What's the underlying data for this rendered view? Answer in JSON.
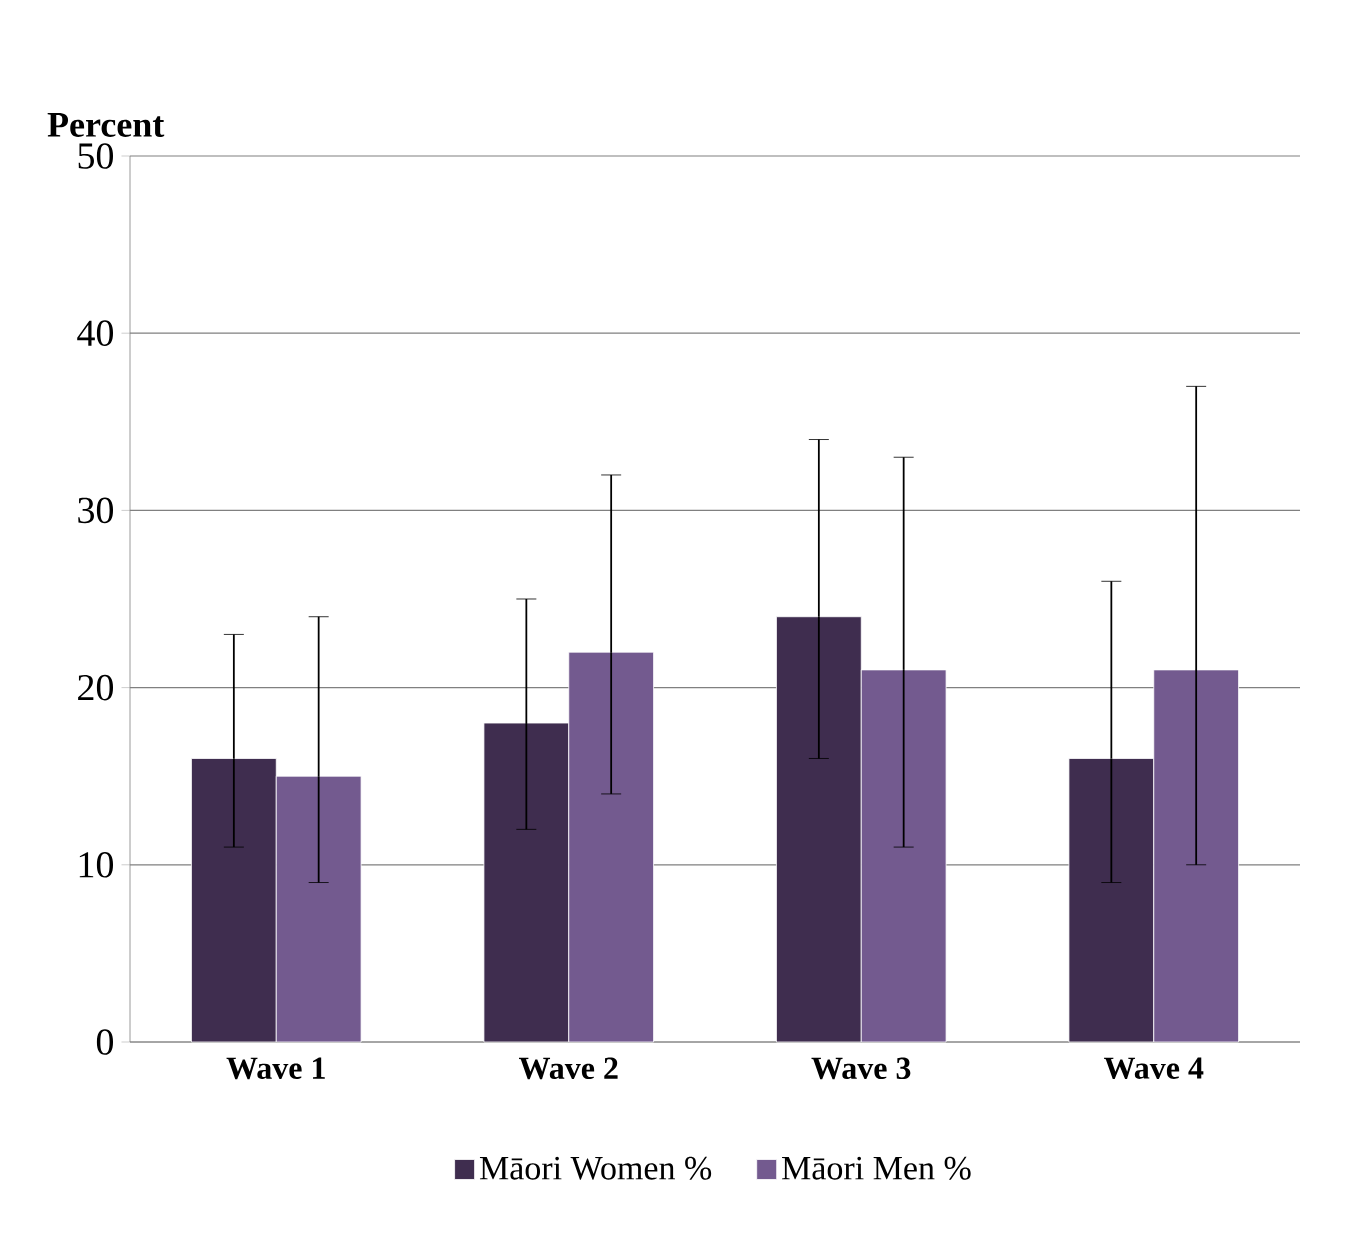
{
  "chart_data": {
    "type": "bar",
    "ylabel": "Percent",
    "categories": [
      "Wave 1",
      "Wave 2",
      "Wave 3",
      "Wave 4"
    ],
    "series": [
      {
        "name": "Māori Women %",
        "color": "#3f2d4f",
        "values": [
          16,
          18,
          24,
          16
        ],
        "errors": [
          [
            11,
            23
          ],
          [
            12,
            25
          ],
          [
            16,
            34
          ],
          [
            9,
            26
          ]
        ]
      },
      {
        "name": "Māori Men %",
        "color": "#735a8f",
        "values": [
          15,
          22,
          21,
          21
        ],
        "errors": [
          [
            9,
            24
          ],
          [
            14,
            32
          ],
          [
            11,
            33
          ],
          [
            10,
            37
          ]
        ]
      }
    ],
    "ylim": [
      0,
      50
    ],
    "yticks": [
      0,
      10,
      20,
      30,
      40,
      50
    ],
    "grid": "y",
    "legend": "bottom"
  }
}
